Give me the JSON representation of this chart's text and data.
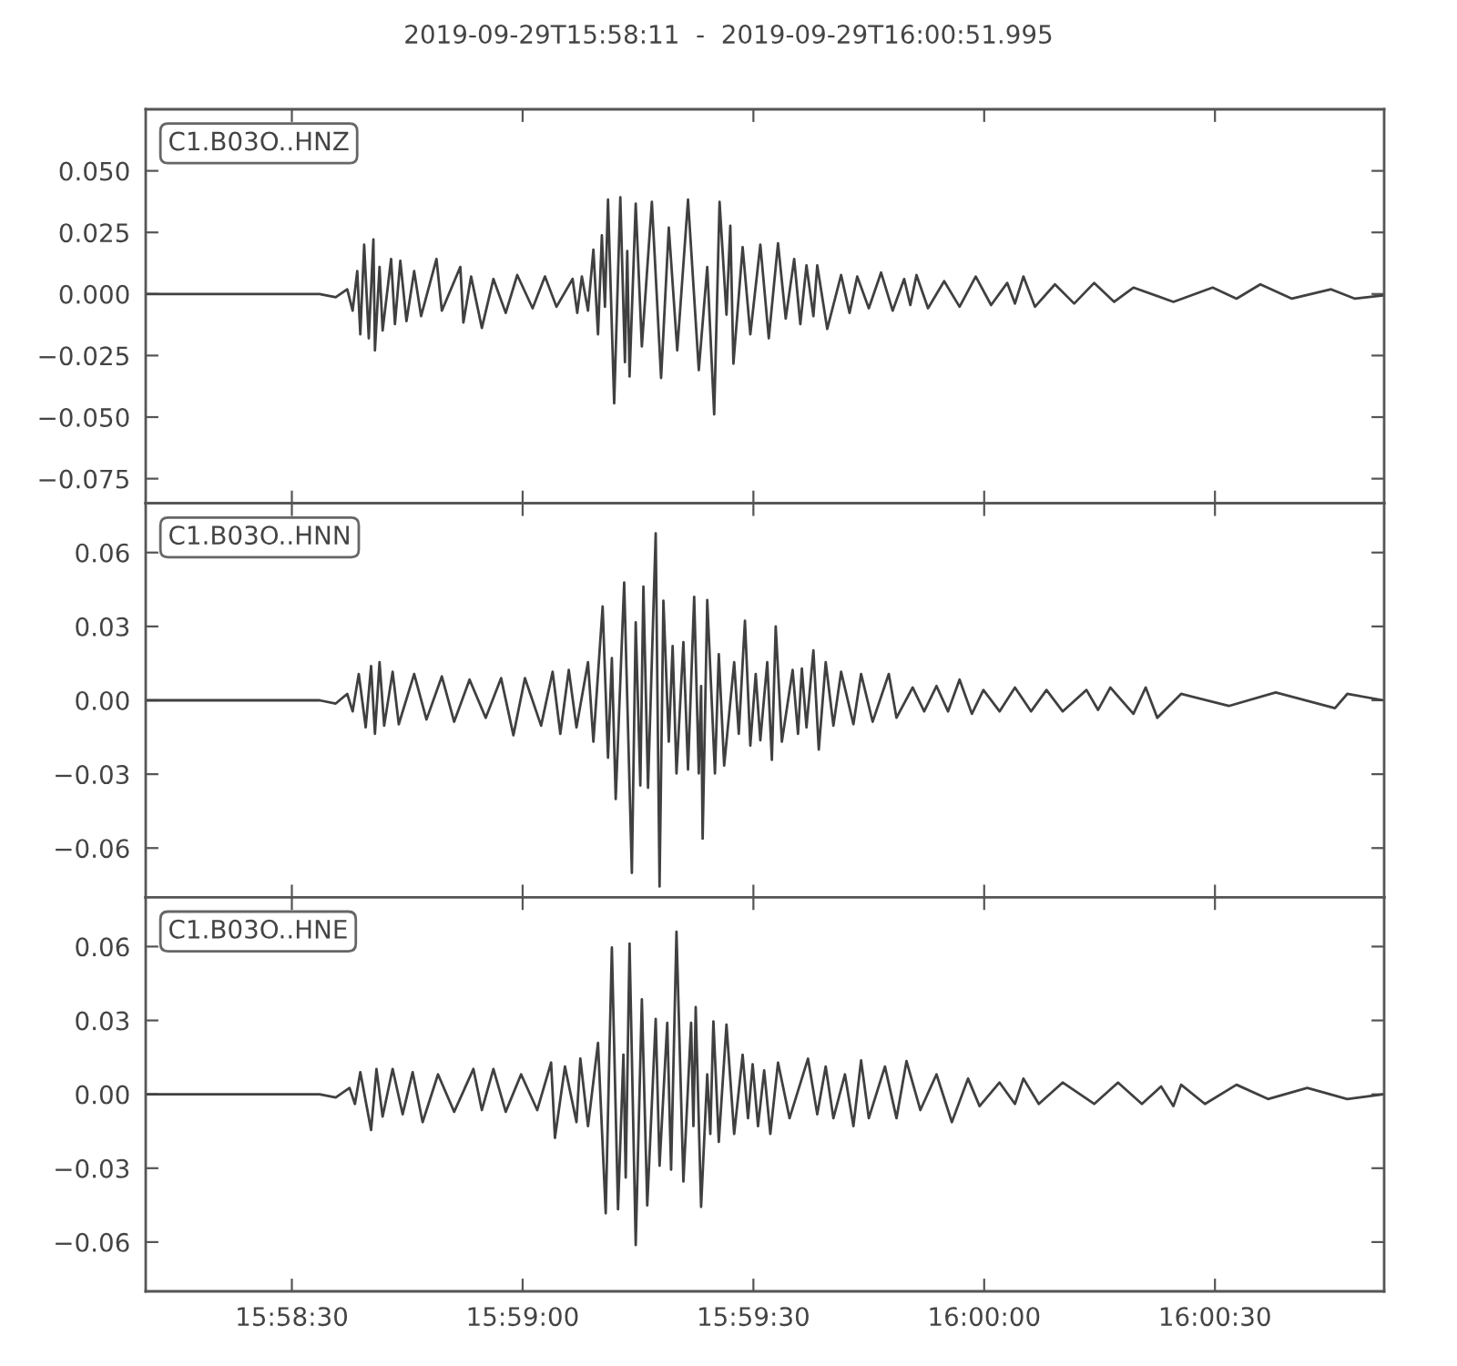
{
  "chart_data": [
    {
      "type": "line",
      "title": "2019-09-29T15:58:11  -  2019-09-29T16:00:51.995",
      "annotations": [
        "C1.B03O..HNZ"
      ],
      "color": "#404040",
      "tick_labels": "y",
      "xlim": [
        "2019-09-29T15:58:11",
        "2019-09-29T16:00:51.995"
      ],
      "xticks": [
        {
          "value": "2019-09-29T15:58:30",
          "label": null
        },
        {
          "value": "2019-09-29T15:59:00",
          "label": null
        },
        {
          "value": "2019-09-29T15:59:30",
          "label": null
        },
        {
          "value": "2019-09-29T16:00:00",
          "label": null
        },
        {
          "value": "2019-09-29T16:00:30",
          "label": null
        }
      ],
      "ylim": [
        -0.085,
        0.075
      ],
      "yticks": [
        {
          "value": -0.075,
          "label": "−0.075"
        },
        {
          "value": -0.05,
          "label": "−0.050"
        },
        {
          "value": -0.025,
          "label": "−0.025"
        },
        {
          "value": 0,
          "label": "0.000"
        },
        {
          "value": 0.025,
          "label": "0.025"
        },
        {
          "value": 0.05,
          "label": "0.050"
        }
      ],
      "x": [
        "2019-09-29T15:58:11.0",
        "2019-09-29T15:58:33.6",
        "2019-09-29T15:58:35.7",
        "2019-09-29T15:58:37.2",
        "2019-09-29T15:58:37.9",
        "2019-09-29T15:58:38.5",
        "2019-09-29T15:58:38.9",
        "2019-09-29T15:58:39.4",
        "2019-09-29T15:58:40.0",
        "2019-09-29T15:58:40.6",
        "2019-09-29T15:58:40.8",
        "2019-09-29T15:58:41.4",
        "2019-09-29T15:58:41.8",
        "2019-09-29T15:58:42.9",
        "2019-09-29T15:58:43.4",
        "2019-09-29T15:58:44.1",
        "2019-09-29T15:58:44.9",
        "2019-09-29T15:58:45.9",
        "2019-09-29T15:58:46.8",
        "2019-09-29T15:58:48.8",
        "2019-09-29T15:58:49.5",
        "2019-09-29T15:58:51.9",
        "2019-09-29T15:58:52.3",
        "2019-09-29T15:58:53.3",
        "2019-09-29T15:58:54.7",
        "2019-09-29T15:58:56.2",
        "2019-09-29T15:58:57.8",
        "2019-09-29T15:58:59.3",
        "2019-09-29T15:59:01.3",
        "2019-09-29T15:59:02.9",
        "2019-09-29T15:59:04.4",
        "2019-09-29T15:59:06.5",
        "2019-09-29T15:59:07.1",
        "2019-09-29T15:59:07.7",
        "2019-09-29T15:59:08.5",
        "2019-09-29T15:59:09.2",
        "2019-09-29T15:59:09.8",
        "2019-09-29T15:59:10.3",
        "2019-09-29T15:59:10.7",
        "2019-09-29T15:59:11.1",
        "2019-09-29T15:59:11.9",
        "2019-09-29T15:59:12.7",
        "2019-09-29T15:59:13.3",
        "2019-09-29T15:59:13.6",
        "2019-09-29T15:59:13.9",
        "2019-09-29T15:59:14.7",
        "2019-09-29T15:59:15.5",
        "2019-09-29T15:59:16.8",
        "2019-09-29T15:59:18.0",
        "2019-09-29T15:59:19.0",
        "2019-09-29T15:59:20.1",
        "2019-09-29T15:59:21.5",
        "2019-09-29T15:59:22.9",
        "2019-09-29T15:59:24.0",
        "2019-09-29T15:59:24.9",
        "2019-09-29T15:59:25.6",
        "2019-09-29T15:59:26.5",
        "2019-09-29T15:59:27.0",
        "2019-09-29T15:59:27.4",
        "2019-09-29T15:59:28.6",
        "2019-09-29T15:59:29.6",
        "2019-09-29T15:59:30.9",
        "2019-09-29T15:59:32.0",
        "2019-09-29T15:59:33.2",
        "2019-09-29T15:59:34.2",
        "2019-09-29T15:59:35.3",
        "2019-09-29T15:59:36.1",
        "2019-09-29T15:59:36.9",
        "2019-09-29T15:59:37.8",
        "2019-09-29T15:59:38.3",
        "2019-09-29T15:59:39.6",
        "2019-09-29T15:59:41.4",
        "2019-09-29T15:59:42.5",
        "2019-09-29T15:59:43.5",
        "2019-09-29T15:59:45.0",
        "2019-09-29T15:59:46.6",
        "2019-09-29T15:59:48.1",
        "2019-09-29T15:59:49.6",
        "2019-09-29T15:59:50.4",
        "2019-09-29T15:59:51.2",
        "2019-09-29T15:59:52.7",
        "2019-09-29T15:59:54.8",
        "2019-09-29T15:59:56.8",
        "2019-09-29T15:59:58.9",
        "2019-09-29T16:00:00.9",
        "2019-09-29T16:00:03.0",
        "2019-09-29T16:00:04.0",
        "2019-09-29T16:00:05.1",
        "2019-09-29T16:00:06.6",
        "2019-09-29T16:00:09.2",
        "2019-09-29T16:00:11.7",
        "2019-09-29T16:00:14.3",
        "2019-09-29T16:00:16.9",
        "2019-09-29T16:00:19.4",
        "2019-09-29T16:00:24.6",
        "2019-09-29T16:00:29.7",
        "2019-09-29T16:00:32.8",
        "2019-09-29T16:00:35.9",
        "2019-09-29T16:00:40.0",
        "2019-09-29T16:00:45.1",
        "2019-09-29T16:00:48.2",
        "2019-09-29T16:00:51.9"
      ],
      "values": [
        0.0,
        0.0,
        -0.0013,
        0.0019,
        -0.0068,
        0.0093,
        -0.0164,
        0.02,
        -0.018,
        0.0222,
        -0.0229,
        0.011,
        -0.0148,
        0.0142,
        -0.0122,
        0.0135,
        -0.011,
        0.0093,
        -0.009,
        0.0142,
        -0.0068,
        0.011,
        -0.0116,
        0.0071,
        -0.0138,
        0.0061,
        -0.0077,
        0.0077,
        -0.0058,
        0.0071,
        -0.0052,
        0.0061,
        -0.0077,
        0.0071,
        -0.0068,
        0.018,
        -0.0164,
        0.0238,
        -0.0052,
        0.0383,
        -0.0444,
        0.0393,
        -0.0277,
        0.0174,
        -0.0335,
        0.0367,
        -0.0213,
        0.0374,
        -0.0341,
        0.027,
        -0.0229,
        0.0383,
        -0.0309,
        0.011,
        -0.0489,
        0.0374,
        -0.0084,
        0.0277,
        -0.0283,
        0.019,
        -0.0164,
        0.02,
        -0.018,
        0.0206,
        -0.01,
        0.0142,
        -0.0122,
        0.0116,
        -0.009,
        0.0116,
        -0.0142,
        0.0077,
        -0.0077,
        0.0071,
        -0.0058,
        0.0087,
        -0.0068,
        0.0061,
        -0.0045,
        0.0077,
        -0.0058,
        0.0052,
        -0.0052,
        0.0071,
        -0.0045,
        0.0045,
        -0.0039,
        0.0071,
        -0.0052,
        0.0039,
        -0.0039,
        0.0045,
        -0.0032,
        0.0026,
        -0.0032,
        0.0026,
        -0.0019,
        0.0039,
        -0.0019,
        0.0019,
        -0.0019,
        -0.0006
      ]
    },
    {
      "type": "line",
      "annotations": [
        "C1.B03O..HNN"
      ],
      "color": "#404040",
      "tick_labels": "y",
      "xlim": [
        "2019-09-29T15:58:11",
        "2019-09-29T16:00:51.995"
      ],
      "xticks": [
        {
          "value": "2019-09-29T15:58:30",
          "label": null
        },
        {
          "value": "2019-09-29T15:59:00",
          "label": null
        },
        {
          "value": "2019-09-29T15:59:30",
          "label": null
        },
        {
          "value": "2019-09-29T16:00:00",
          "label": null
        },
        {
          "value": "2019-09-29T16:00:30",
          "label": null
        }
      ],
      "ylim": [
        -0.08,
        0.08
      ],
      "yticks": [
        {
          "value": -0.06,
          "label": "−0.06"
        },
        {
          "value": -0.03,
          "label": "−0.03"
        },
        {
          "value": 0,
          "label": "0.00"
        },
        {
          "value": 0.03,
          "label": "0.03"
        },
        {
          "value": 0.06,
          "label": "0.06"
        }
      ],
      "x": [
        "2019-09-29T15:58:11.0",
        "2019-09-29T15:58:33.6",
        "2019-09-29T15:58:35.7",
        "2019-09-29T15:58:37.2",
        "2019-09-29T15:58:37.9",
        "2019-09-29T15:58:38.7",
        "2019-09-29T15:58:39.6",
        "2019-09-29T15:58:40.3",
        "2019-09-29T15:58:40.8",
        "2019-09-29T15:58:41.4",
        "2019-09-29T15:58:42.0",
        "2019-09-29T15:58:43.1",
        "2019-09-29T15:58:43.9",
        "2019-09-29T15:58:45.9",
        "2019-09-29T15:58:47.5",
        "2019-09-29T15:58:49.5",
        "2019-09-29T15:58:51.1",
        "2019-09-29T15:58:53.1",
        "2019-09-29T15:58:55.2",
        "2019-09-29T15:58:57.2",
        "2019-09-29T15:58:58.8",
        "2019-09-29T15:59:00.3",
        "2019-09-29T15:59:02.4",
        "2019-09-29T15:59:03.9",
        "2019-09-29T15:59:04.9",
        "2019-09-29T15:59:06.0",
        "2019-09-29T15:59:07.0",
        "2019-09-29T15:59:08.5",
        "2019-09-29T15:59:09.2",
        "2019-09-29T15:59:10.4",
        "2019-09-29T15:59:11.1",
        "2019-09-29T15:59:11.6",
        "2019-09-29T15:59:12.1",
        "2019-09-29T15:59:13.2",
        "2019-09-29T15:59:14.2",
        "2019-09-29T15:59:14.7",
        "2019-09-29T15:59:15.3",
        "2019-09-29T15:59:15.7",
        "2019-09-29T15:59:16.3",
        "2019-09-29T15:59:17.3",
        "2019-09-29T15:59:17.8",
        "2019-09-29T15:59:18.3",
        "2019-09-29T15:59:19.0",
        "2019-09-29T15:59:19.5",
        "2019-09-29T15:59:20.0",
        "2019-09-29T15:59:20.9",
        "2019-09-29T15:59:21.5",
        "2019-09-29T15:59:22.3",
        "2019-09-29T15:59:22.9",
        "2019-09-29T15:59:23.2",
        "2019-09-29T15:59:23.4",
        "2019-09-29T15:59:24.0",
        "2019-09-29T15:59:25.0",
        "2019-09-29T15:59:25.5",
        "2019-09-29T15:59:26.2",
        "2019-09-29T15:59:27.5",
        "2019-09-29T15:59:28.1",
        "2019-09-29T15:59:28.9",
        "2019-09-29T15:59:29.6",
        "2019-09-29T15:59:30.3",
        "2019-09-29T15:59:30.9",
        "2019-09-29T15:59:31.8",
        "2019-09-29T15:59:32.4",
        "2019-09-29T15:59:32.9",
        "2019-09-29T15:59:33.7",
        "2019-09-29T15:59:35.1",
        "2019-09-29T15:59:35.8",
        "2019-09-29T15:59:36.3",
        "2019-09-29T15:59:36.9",
        "2019-09-29T15:59:37.8",
        "2019-09-29T15:59:38.5",
        "2019-09-29T15:59:39.4",
        "2019-09-29T15:59:40.4",
        "2019-09-29T15:59:41.4",
        "2019-09-29T15:59:43.0",
        "2019-09-29T15:59:44.0",
        "2019-09-29T15:59:45.5",
        "2019-09-29T15:59:47.6",
        "2019-09-29T15:59:48.6",
        "2019-09-29T15:59:50.7",
        "2019-09-29T15:59:52.2",
        "2019-09-29T15:59:53.8",
        "2019-09-29T15:59:55.3",
        "2019-09-29T15:59:56.8",
        "2019-09-29T15:59:58.4",
        "2019-09-29T15:59:59.9",
        "2019-09-29T16:00:02.0",
        "2019-09-29T16:00:04.0",
        "2019-09-29T16:00:06.1",
        "2019-09-29T16:00:08.1",
        "2019-09-29T16:00:10.2",
        "2019-09-29T16:00:13.3",
        "2019-09-29T16:00:14.8",
        "2019-09-29T16:00:16.4",
        "2019-09-29T16:00:19.4",
        "2019-09-29T16:00:21.0",
        "2019-09-29T16:00:22.5",
        "2019-09-29T16:00:25.6",
        "2019-09-29T16:00:31.8",
        "2019-09-29T16:00:37.9",
        "2019-09-29T16:00:45.6",
        "2019-09-29T16:00:47.2",
        "2019-09-29T16:00:51.9"
      ],
      "values": [
        0.0,
        0.0,
        -0.0013,
        0.0026,
        -0.0045,
        0.0107,
        -0.011,
        0.0139,
        -0.0136,
        0.0155,
        -0.0103,
        0.0116,
        -0.0097,
        0.0107,
        -0.0078,
        0.0097,
        -0.0087,
        0.0084,
        -0.0071,
        0.009,
        -0.0142,
        0.009,
        -0.0103,
        0.0116,
        -0.0136,
        0.0123,
        -0.011,
        0.0155,
        -0.0168,
        0.0381,
        -0.0233,
        0.0171,
        -0.0401,
        0.0478,
        -0.0701,
        0.0317,
        -0.0346,
        0.0462,
        -0.0355,
        0.0678,
        -0.0756,
        0.0404,
        -0.0168,
        0.022,
        -0.0297,
        0.0236,
        -0.0281,
        0.042,
        -0.0297,
        0.0058,
        -0.0562,
        0.0407,
        -0.0297,
        0.0187,
        -0.0265,
        0.0155,
        -0.0136,
        0.0323,
        -0.0184,
        0.0107,
        -0.0162,
        0.0155,
        -0.0242,
        0.03,
        -0.0168,
        0.0123,
        -0.0136,
        0.0129,
        -0.011,
        0.0203,
        -0.02,
        0.0155,
        -0.0103,
        0.0116,
        -0.0097,
        0.0107,
        -0.0087,
        0.0107,
        -0.0071,
        0.0052,
        -0.0045,
        0.0058,
        -0.0045,
        0.0084,
        -0.0055,
        0.0042,
        -0.0045,
        0.0052,
        -0.0045,
        0.0042,
        -0.0045,
        0.0042,
        -0.0039,
        0.0052,
        -0.0055,
        0.0052,
        -0.0071,
        0.0026,
        -0.0023,
        0.0032,
        -0.0032,
        0.0026,
        0.0
      ]
    },
    {
      "type": "line",
      "annotations": [
        "C1.B03O..HNE"
      ],
      "color": "#404040",
      "xlim": [
        "2019-09-29T15:58:11",
        "2019-09-29T16:00:51.995"
      ],
      "xticks": [
        {
          "value": "2019-09-29T15:58:30",
          "label": "15:58:30"
        },
        {
          "value": "2019-09-29T15:59:00",
          "label": "15:59:00"
        },
        {
          "value": "2019-09-29T15:59:30",
          "label": "15:59:30"
        },
        {
          "value": "2019-09-29T16:00:00",
          "label": "16:00:00"
        },
        {
          "value": "2019-09-29T16:00:30",
          "label": "16:00:30"
        }
      ],
      "ylim": [
        -0.08,
        0.08
      ],
      "yticks": [
        {
          "value": -0.06,
          "label": "−0.06"
        },
        {
          "value": -0.03,
          "label": "−0.03"
        },
        {
          "value": 0,
          "label": "0.00"
        },
        {
          "value": 0.03,
          "label": "0.03"
        },
        {
          "value": 0.06,
          "label": "0.06"
        }
      ],
      "x": [
        "2019-09-29T15:58:11.0",
        "2019-09-29T15:58:33.6",
        "2019-09-29T15:58:35.7",
        "2019-09-29T15:58:37.5",
        "2019-09-29T15:58:38.2",
        "2019-09-29T15:58:38.9",
        "2019-09-29T15:58:40.3",
        "2019-09-29T15:58:41.0",
        "2019-09-29T15:58:41.8",
        "2019-09-29T15:58:43.1",
        "2019-09-29T15:58:44.4",
        "2019-09-29T15:58:45.7",
        "2019-09-29T15:58:47.0",
        "2019-09-29T15:58:49.0",
        "2019-09-29T15:58:51.1",
        "2019-09-29T15:58:53.6",
        "2019-09-29T15:58:54.7",
        "2019-09-29T15:58:56.2",
        "2019-09-29T15:58:57.8",
        "2019-09-29T15:58:59.8",
        "2019-09-29T15:59:01.9",
        "2019-09-29T15:59:03.7",
        "2019-09-29T15:59:04.2",
        "2019-09-29T15:59:05.5",
        "2019-09-29T15:59:07.0",
        "2019-09-29T15:59:07.5",
        "2019-09-29T15:59:08.5",
        "2019-09-29T15:59:09.8",
        "2019-09-29T15:59:10.8",
        "2019-09-29T15:59:11.6",
        "2019-09-29T15:59:12.4",
        "2019-09-29T15:59:13.1",
        "2019-09-29T15:59:13.4",
        "2019-09-29T15:59:13.9",
        "2019-09-29T15:59:14.7",
        "2019-09-29T15:59:15.5",
        "2019-09-29T15:59:16.2",
        "2019-09-29T15:59:17.3",
        "2019-09-29T15:59:17.8",
        "2019-09-29T15:59:18.8",
        "2019-09-29T15:59:19.3",
        "2019-09-29T15:59:20.0",
        "2019-09-29T15:59:20.9",
        "2019-09-29T15:59:21.9",
        "2019-09-29T15:59:22.2",
        "2019-09-29T15:59:22.5",
        "2019-09-29T15:59:23.2",
        "2019-09-29T15:59:24.0",
        "2019-09-29T15:59:24.4",
        "2019-09-29T15:59:24.8",
        "2019-09-29T15:59:25.5",
        "2019-09-29T15:59:26.5",
        "2019-09-29T15:59:27.5",
        "2019-09-29T15:59:28.6",
        "2019-09-29T15:59:29.3",
        "2019-09-29T15:59:29.9",
        "2019-09-29T15:59:30.6",
        "2019-09-29T15:59:31.4",
        "2019-09-29T15:59:32.2",
        "2019-09-29T15:59:33.2",
        "2019-09-29T15:59:34.7",
        "2019-09-29T15:59:37.1",
        "2019-09-29T15:59:38.3",
        "2019-09-29T15:59:39.4",
        "2019-09-29T15:59:40.4",
        "2019-09-29T15:59:41.9",
        "2019-09-29T15:59:43.0",
        "2019-09-29T15:59:44.0",
        "2019-09-29T15:59:45.0",
        "2019-09-29T15:59:47.1",
        "2019-09-29T15:59:48.6",
        "2019-09-29T15:59:49.9",
        "2019-09-29T15:59:51.7",
        "2019-09-29T15:59:53.8",
        "2019-09-29T15:59:55.8",
        "2019-09-29T15:59:57.9",
        "2019-09-29T15:59:59.4",
        "2019-09-29T16:00:02.0",
        "2019-09-29T16:00:04.0",
        "2019-09-29T16:00:05.1",
        "2019-09-29T16:00:07.1",
        "2019-09-29T16:00:10.2",
        "2019-09-29T16:00:14.3",
        "2019-09-29T16:00:17.4",
        "2019-09-29T16:00:20.5",
        "2019-09-29T16:00:23.0",
        "2019-09-29T16:00:24.6",
        "2019-09-29T16:00:25.6",
        "2019-09-29T16:00:28.7",
        "2019-09-29T16:00:32.8",
        "2019-09-29T16:00:36.9",
        "2019-09-29T16:00:42.0",
        "2019-09-29T16:00:47.2",
        "2019-09-29T16:00:51.9"
      ],
      "values": [
        0.0,
        0.0,
        -0.0013,
        0.0026,
        -0.0039,
        0.009,
        -0.0145,
        0.0103,
        -0.009,
        0.0103,
        -0.0081,
        0.009,
        -0.0113,
        0.0081,
        -0.0071,
        0.0103,
        -0.0064,
        0.0103,
        -0.0071,
        0.0081,
        -0.0064,
        0.0129,
        -0.0177,
        0.0113,
        -0.0113,
        0.0145,
        -0.0129,
        0.0209,
        -0.0483,
        0.0596,
        -0.0467,
        0.0161,
        -0.0338,
        0.0612,
        -0.0612,
        0.0386,
        -0.0451,
        0.0306,
        -0.029,
        0.029,
        -0.0306,
        0.066,
        -0.0354,
        0.029,
        -0.0129,
        0.0354,
        -0.0457,
        0.0081,
        -0.0161,
        0.0296,
        -0.0193,
        0.0283,
        -0.0161,
        0.0161,
        -0.0097,
        0.0122,
        -0.0129,
        0.0097,
        -0.0161,
        0.0129,
        -0.0097,
        0.0145,
        -0.0081,
        0.0113,
        -0.0097,
        0.0081,
        -0.0129,
        0.0138,
        -0.0097,
        0.0113,
        -0.0097,
        0.0135,
        -0.0064,
        0.0081,
        -0.0113,
        0.0064,
        -0.0048,
        0.0048,
        -0.0039,
        0.0064,
        -0.0039,
        0.0048,
        -0.0039,
        0.0048,
        -0.0039,
        0.0032,
        -0.0048,
        0.0039,
        -0.0039,
        0.0039,
        -0.0019,
        0.0026,
        -0.0019,
        0.0
      ]
    }
  ]
}
